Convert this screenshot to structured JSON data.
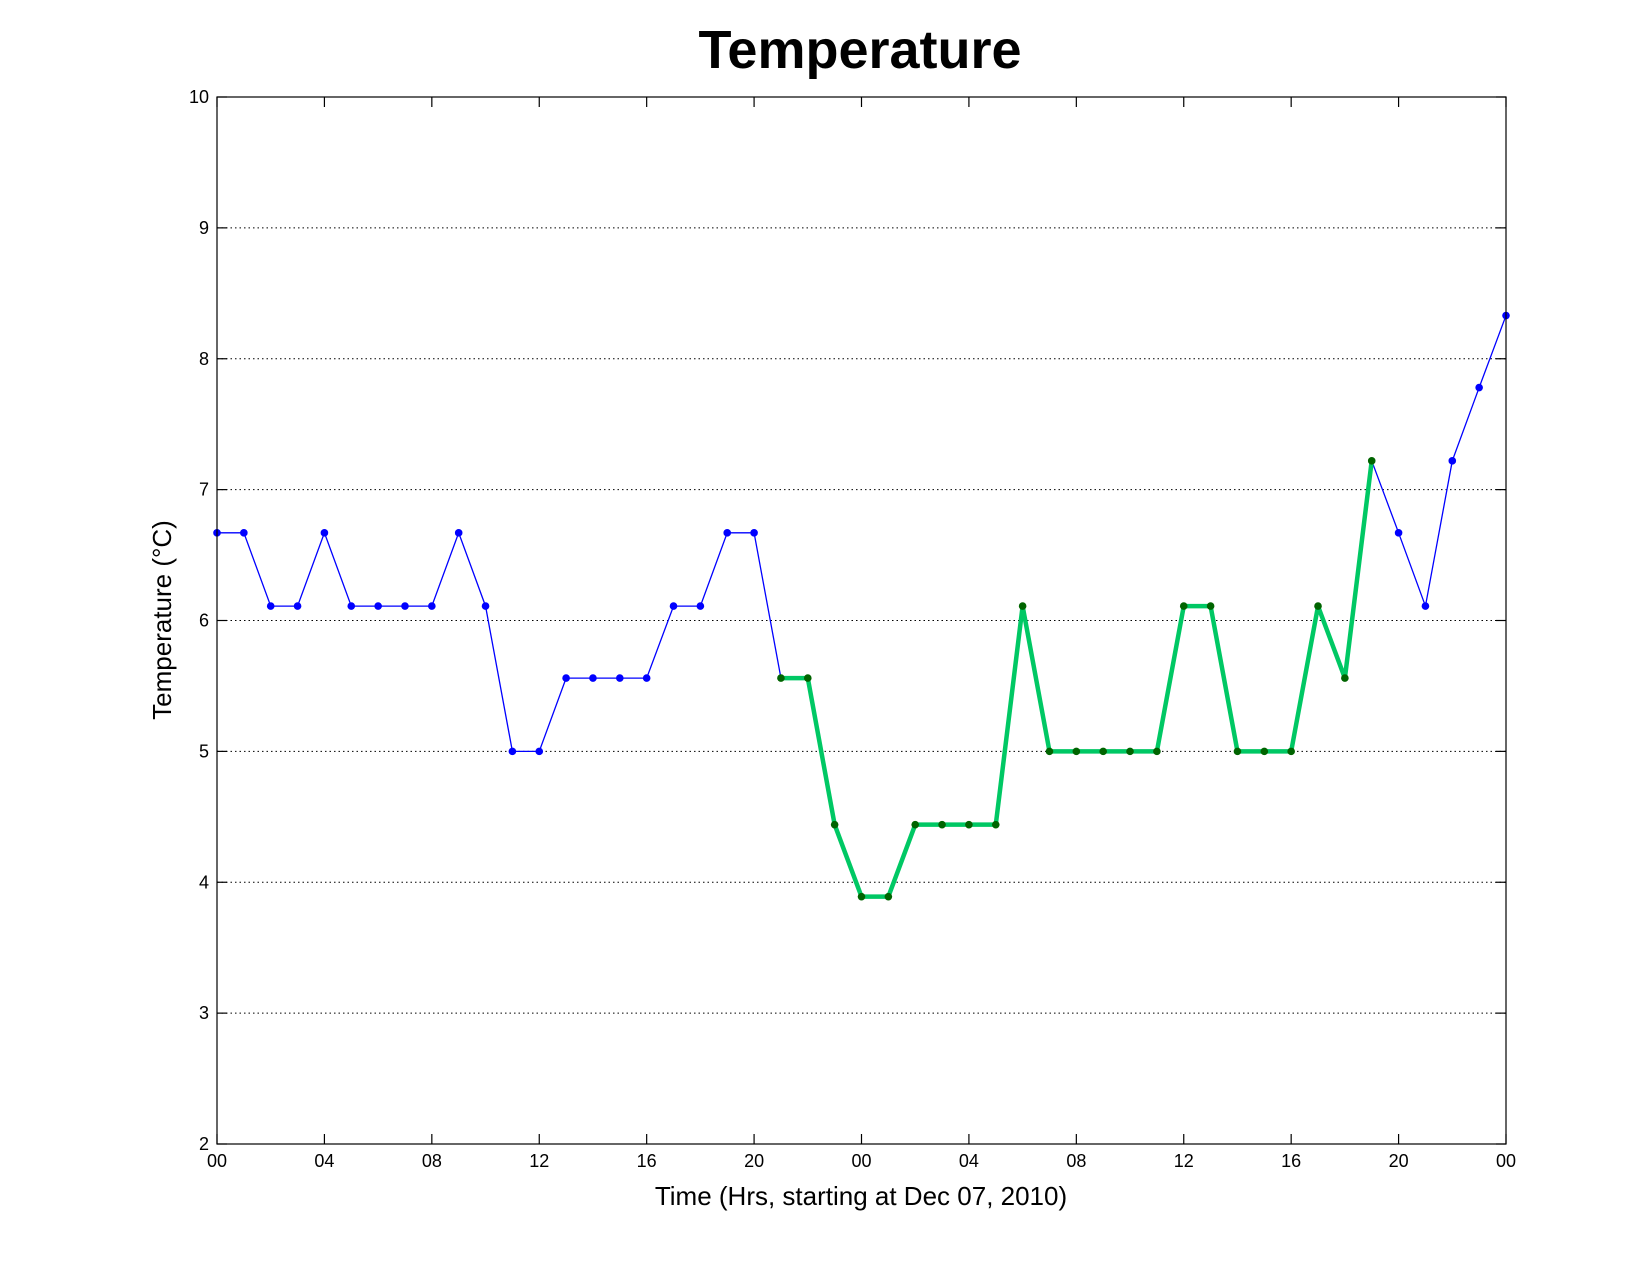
{
  "chart_data": {
    "type": "line",
    "title": "Temperature",
    "xlabel": "Time (Hrs, starting at Dec 07, 2010)",
    "ylabel": "Temperature (°C)",
    "xlim": [
      0,
      48
    ],
    "ylim": [
      2,
      10
    ],
    "x_ticks": [
      {
        "value": 0,
        "label": "00"
      },
      {
        "value": 4,
        "label": "04"
      },
      {
        "value": 8,
        "label": "08"
      },
      {
        "value": 12,
        "label": "12"
      },
      {
        "value": 16,
        "label": "16"
      },
      {
        "value": 20,
        "label": "20"
      },
      {
        "value": 24,
        "label": "00"
      },
      {
        "value": 28,
        "label": "04"
      },
      {
        "value": 32,
        "label": "08"
      },
      {
        "value": 36,
        "label": "12"
      },
      {
        "value": 40,
        "label": "16"
      },
      {
        "value": 44,
        "label": "20"
      },
      {
        "value": 48,
        "label": "00"
      }
    ],
    "y_ticks": [
      2,
      3,
      4,
      5,
      6,
      7,
      8,
      9,
      10
    ],
    "grid": "horizontal-dotted",
    "colors": {
      "series_line": "#0000ff",
      "series_marker": "#0000ff",
      "highlight_line": "#00c864",
      "highlight_marker": "#006400",
      "grid": "#000000",
      "axes": "#000000"
    },
    "series": [
      {
        "x": [
          0,
          1,
          2,
          3,
          4,
          5,
          6,
          7,
          8,
          9,
          10,
          11,
          12,
          13,
          14,
          15,
          16,
          17,
          18,
          19,
          20,
          21,
          22,
          23,
          24,
          25,
          26,
          27,
          28,
          29,
          30,
          31,
          32,
          33,
          34,
          35,
          36,
          37,
          38,
          39,
          40,
          41,
          42,
          43,
          44,
          45,
          46,
          47,
          48
        ],
        "values": [
          6.67,
          6.67,
          6.11,
          6.11,
          6.67,
          6.11,
          6.11,
          6.11,
          6.11,
          6.67,
          6.11,
          5.0,
          5.0,
          5.56,
          5.56,
          5.56,
          5.56,
          6.11,
          6.11,
          6.67,
          6.67,
          5.56,
          5.56,
          4.44,
          3.89,
          3.89,
          4.44,
          4.44,
          4.44,
          4.44,
          6.11,
          5.0,
          5.0,
          5.0,
          5.0,
          5.0,
          6.11,
          6.11,
          5.0,
          5.0,
          5.0,
          6.11,
          5.56,
          7.22,
          6.67,
          6.11,
          7.22,
          7.78,
          8.33
        ]
      }
    ],
    "highlight_range": [
      21,
      43
    ]
  }
}
